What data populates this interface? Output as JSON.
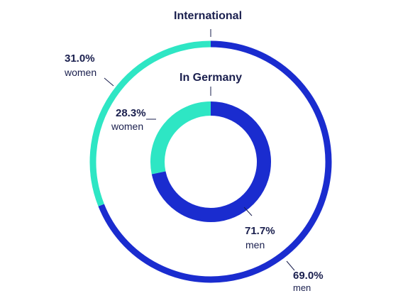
{
  "chart_data": [
    {
      "type": "pie",
      "title": "International",
      "categories": [
        "women",
        "men"
      ],
      "values": [
        31.0,
        69.0
      ],
      "value_labels": [
        "31.0%",
        "69.0%"
      ],
      "colors": [
        "#2ee6c4",
        "#1a2ccf"
      ]
    },
    {
      "type": "pie",
      "title": "In Germany",
      "categories": [
        "women",
        "men"
      ],
      "values": [
        28.3,
        71.7
      ],
      "value_labels": [
        "28.3%",
        "71.7%"
      ],
      "colors": [
        "#2ee6c4",
        "#1a2ccf"
      ]
    }
  ]
}
